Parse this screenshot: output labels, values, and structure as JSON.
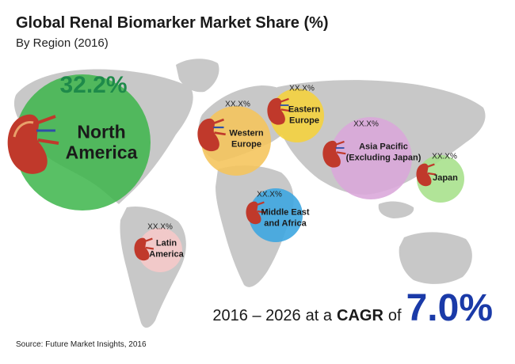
{
  "chart_data": {
    "type": "bubble-map",
    "title": "Global Renal Biomarker Market Share (%)",
    "subtitle": "By Region (2016)",
    "regions": [
      {
        "name": "North America",
        "label": "North\nAmerica",
        "share": 32.2,
        "value_text": "32.2%",
        "color": "#3cb54a"
      },
      {
        "name": "Western Europe",
        "label": "Western\nEurope",
        "share": null,
        "value_text": "XX.X%",
        "color": "#f5c45a"
      },
      {
        "name": "Eastern Europe",
        "label": "Eastern\nEurope",
        "share": null,
        "value_text": "XX.X%",
        "color": "#f5d23a"
      },
      {
        "name": "Asia Pacific (Excluding Japan)",
        "label": "Asia Pacific\n(Excluding Japan)",
        "share": null,
        "value_text": "XX.X%",
        "color": "#d9a6d9"
      },
      {
        "name": "Japan",
        "label": "Japan",
        "share": null,
        "value_text": "XX.X%",
        "color": "#a6e08a"
      },
      {
        "name": "Middle East and Africa",
        "label": "Middle East\nand Africa",
        "share": null,
        "value_text": "XX.X%",
        "color": "#3ea6e0"
      },
      {
        "name": "Latin America",
        "label": "Latin\nAmerica",
        "share": null,
        "value_text": "XX.X%",
        "color": "#f5c9c9"
      }
    ]
  },
  "cagr": {
    "period": "2016 – 2026",
    "at_a": "at a",
    "cagr_word": "CAGR",
    "of_word": "of",
    "value": "7.0%"
  },
  "source": "Source: Future Market Insights, 2016",
  "icons": {
    "region_marker": "kidney-icon"
  }
}
